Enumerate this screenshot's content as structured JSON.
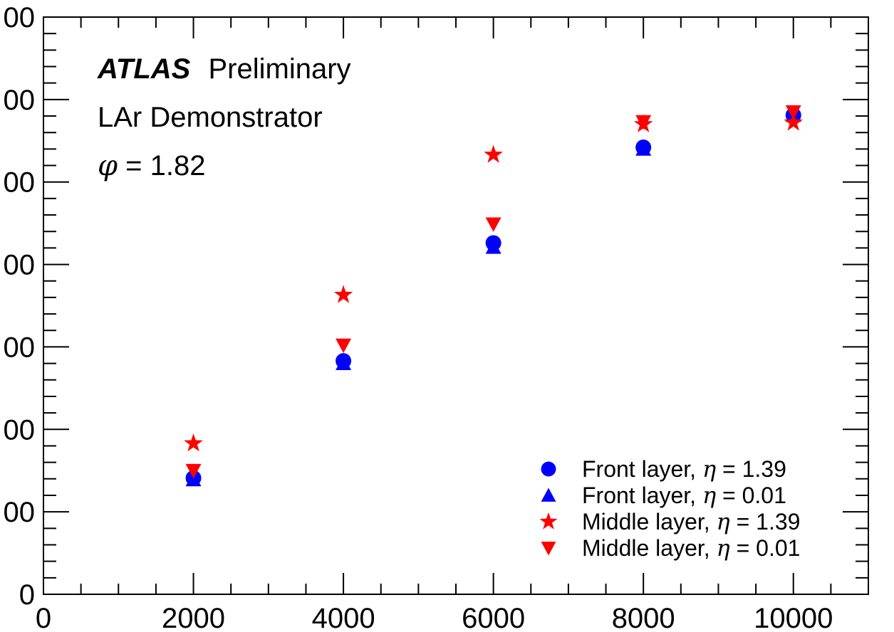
{
  "chart_data": {
    "type": "scatter",
    "title": "",
    "xlabel": "",
    "ylabel": "",
    "xlim": [
      0,
      11000
    ],
    "ylim": [
      0,
      3500
    ],
    "x_ticks": [
      0,
      2000,
      4000,
      6000,
      8000,
      10000
    ],
    "x_tick_labels": [
      "0",
      "2000",
      "4000",
      "6000",
      "8000",
      "10000"
    ],
    "y_ticks": [
      0,
      500,
      1000,
      1500,
      2000,
      2500,
      3000,
      3500
    ],
    "y_tick_labels": [
      "0",
      "00",
      "00",
      "00",
      "00",
      "00",
      "00",
      "00"
    ],
    "grid": false,
    "legend_position": "bottom-right",
    "annotations": {
      "experiment": "ATLAS",
      "status": "Preliminary",
      "detector": "LAr Demonstrator",
      "phi_symbol": "φ",
      "phi_text": " = 1.82"
    },
    "series": [
      {
        "name": "Front layer, η = 1.39",
        "legend_prefix": "Front layer, ",
        "legend_symbol": "η",
        "legend_suffix": " = 1.39",
        "marker": "circle",
        "color": "#0000ff",
        "x": [
          2000,
          4000,
          6000,
          8000,
          10000
        ],
        "y": [
          705,
          1415,
          2130,
          2710,
          2905
        ]
      },
      {
        "name": "Front layer, η = 0.01",
        "legend_prefix": "Front layer, ",
        "legend_symbol": "η",
        "legend_suffix": " = 0.01",
        "marker": "triangle-up",
        "color": "#0000ff",
        "x": [
          2000,
          4000,
          6000,
          8000,
          10000
        ],
        "y": [
          695,
          1400,
          2105,
          2700,
          2905
        ]
      },
      {
        "name": "Middle layer, η = 1.39",
        "legend_prefix": "Middle layer, ",
        "legend_symbol": "η",
        "legend_suffix": " = 1.39",
        "marker": "star",
        "color": "#ff0000",
        "x": [
          2000,
          4000,
          6000,
          8000,
          10000
        ],
        "y": [
          915,
          1815,
          2665,
          2850,
          2860
        ]
      },
      {
        "name": "Middle layer, η = 0.01",
        "legend_prefix": "Middle layer, ",
        "legend_symbol": "η",
        "legend_suffix": " = 0.01",
        "marker": "triangle-down",
        "color": "#ff0000",
        "x": [
          2000,
          4000,
          6000,
          8000,
          10000
        ],
        "y": [
          750,
          1510,
          2245,
          2865,
          2925
        ]
      }
    ]
  }
}
